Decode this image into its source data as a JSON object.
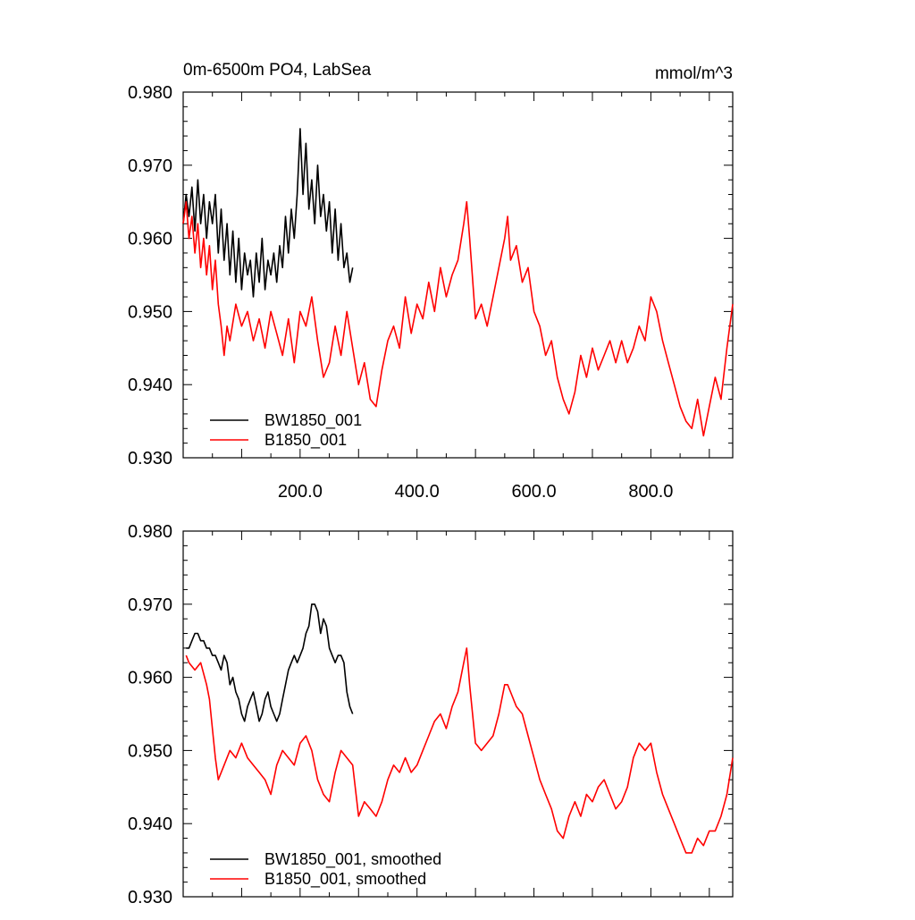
{
  "chart_data": [
    {
      "type": "line",
      "title": "0m-6500m PO4, LabSea",
      "units": "mmol/m^3",
      "xlim": [
        0,
        940
      ],
      "ylim": [
        0.93,
        0.98
      ],
      "x_ticks": [
        {
          "value": 200,
          "label": "200.0"
        },
        {
          "value": 400,
          "label": "400.0"
        },
        {
          "value": 600,
          "label": "600.0"
        },
        {
          "value": 800,
          "label": "800.0"
        }
      ],
      "y_ticks": [
        {
          "value": 0.93,
          "label": "0.930"
        },
        {
          "value": 0.94,
          "label": "0.940"
        },
        {
          "value": 0.95,
          "label": "0.950"
        },
        {
          "value": 0.96,
          "label": "0.960"
        },
        {
          "value": 0.97,
          "label": "0.970"
        },
        {
          "value": 0.98,
          "label": "0.980"
        }
      ],
      "legend_position": "bottom-left",
      "series": [
        {
          "name": "BW1850_001",
          "color": "#000000",
          "x": [
            0,
            5,
            10,
            15,
            20,
            25,
            30,
            35,
            40,
            45,
            50,
            55,
            60,
            65,
            70,
            75,
            80,
            85,
            90,
            95,
            100,
            105,
            110,
            115,
            120,
            125,
            130,
            135,
            140,
            145,
            150,
            155,
            160,
            165,
            170,
            175,
            180,
            185,
            190,
            195,
            200,
            205,
            210,
            215,
            220,
            225,
            230,
            235,
            240,
            245,
            250,
            255,
            260,
            265,
            270,
            275,
            280,
            285,
            290
          ],
          "y": [
            0.962,
            0.966,
            0.963,
            0.967,
            0.961,
            0.968,
            0.962,
            0.966,
            0.96,
            0.965,
            0.962,
            0.966,
            0.958,
            0.964,
            0.957,
            0.962,
            0.955,
            0.961,
            0.954,
            0.96,
            0.953,
            0.958,
            0.955,
            0.957,
            0.952,
            0.958,
            0.954,
            0.96,
            0.953,
            0.957,
            0.955,
            0.958,
            0.954,
            0.959,
            0.956,
            0.963,
            0.958,
            0.964,
            0.96,
            0.966,
            0.975,
            0.966,
            0.973,
            0.964,
            0.968,
            0.962,
            0.97,
            0.963,
            0.966,
            0.961,
            0.965,
            0.958,
            0.964,
            0.957,
            0.962,
            0.956,
            0.958,
            0.954,
            0.956
          ]
        },
        {
          "name": "B1850_001",
          "color": "#ff0000",
          "x": [
            0,
            5,
            10,
            15,
            20,
            25,
            30,
            35,
            40,
            45,
            50,
            55,
            60,
            65,
            70,
            75,
            80,
            90,
            100,
            110,
            120,
            130,
            140,
            150,
            160,
            170,
            180,
            190,
            200,
            210,
            220,
            230,
            240,
            250,
            260,
            270,
            280,
            290,
            300,
            310,
            320,
            330,
            340,
            350,
            360,
            370,
            380,
            390,
            400,
            410,
            420,
            430,
            440,
            450,
            460,
            470,
            480,
            485,
            490,
            500,
            510,
            520,
            530,
            540,
            550,
            555,
            560,
            570,
            580,
            590,
            600,
            610,
            620,
            630,
            640,
            650,
            660,
            670,
            680,
            690,
            700,
            710,
            720,
            730,
            740,
            750,
            760,
            770,
            780,
            790,
            800,
            810,
            820,
            830,
            840,
            850,
            860,
            870,
            880,
            890,
            900,
            910,
            920,
            930,
            940
          ],
          "y": [
            0.962,
            0.965,
            0.96,
            0.963,
            0.958,
            0.962,
            0.956,
            0.96,
            0.955,
            0.959,
            0.953,
            0.957,
            0.951,
            0.948,
            0.944,
            0.948,
            0.946,
            0.951,
            0.948,
            0.95,
            0.946,
            0.949,
            0.945,
            0.95,
            0.947,
            0.944,
            0.949,
            0.943,
            0.95,
            0.948,
            0.952,
            0.946,
            0.941,
            0.943,
            0.948,
            0.944,
            0.95,
            0.945,
            0.94,
            0.943,
            0.938,
            0.937,
            0.942,
            0.946,
            0.948,
            0.945,
            0.952,
            0.947,
            0.951,
            0.949,
            0.954,
            0.95,
            0.956,
            0.952,
            0.955,
            0.957,
            0.962,
            0.965,
            0.96,
            0.949,
            0.951,
            0.948,
            0.952,
            0.956,
            0.96,
            0.963,
            0.957,
            0.959,
            0.954,
            0.956,
            0.95,
            0.948,
            0.944,
            0.946,
            0.941,
            0.938,
            0.936,
            0.939,
            0.944,
            0.941,
            0.945,
            0.942,
            0.944,
            0.946,
            0.943,
            0.946,
            0.943,
            0.945,
            0.948,
            0.946,
            0.952,
            0.95,
            0.946,
            0.943,
            0.94,
            0.937,
            0.935,
            0.934,
            0.938,
            0.933,
            0.937,
            0.941,
            0.938,
            0.945,
            0.951
          ]
        }
      ]
    },
    {
      "type": "line",
      "xlim": [
        0,
        940
      ],
      "ylim": [
        0.93,
        0.98
      ],
      "y_ticks": [
        {
          "value": 0.93,
          "label": "0.930"
        },
        {
          "value": 0.94,
          "label": "0.940"
        },
        {
          "value": 0.95,
          "label": "0.950"
        },
        {
          "value": 0.96,
          "label": "0.960"
        },
        {
          "value": 0.97,
          "label": "0.970"
        },
        {
          "value": 0.98,
          "label": "0.980"
        }
      ],
      "legend_position": "bottom-left",
      "series": [
        {
          "name": "BW1850_001, smoothed",
          "color": "#000000",
          "x": [
            5,
            10,
            15,
            20,
            25,
            30,
            35,
            40,
            45,
            50,
            55,
            60,
            65,
            70,
            75,
            80,
            85,
            90,
            95,
            100,
            105,
            110,
            115,
            120,
            125,
            130,
            135,
            140,
            145,
            150,
            155,
            160,
            165,
            170,
            175,
            180,
            185,
            190,
            195,
            200,
            205,
            210,
            215,
            220,
            225,
            230,
            235,
            240,
            245,
            250,
            255,
            260,
            265,
            270,
            275,
            280,
            285,
            290
          ],
          "y": [
            0.964,
            0.964,
            0.965,
            0.966,
            0.966,
            0.965,
            0.965,
            0.964,
            0.964,
            0.963,
            0.963,
            0.962,
            0.961,
            0.963,
            0.962,
            0.959,
            0.96,
            0.958,
            0.957,
            0.955,
            0.954,
            0.956,
            0.957,
            0.958,
            0.956,
            0.954,
            0.955,
            0.957,
            0.958,
            0.956,
            0.955,
            0.954,
            0.955,
            0.957,
            0.959,
            0.961,
            0.962,
            0.963,
            0.962,
            0.963,
            0.964,
            0.966,
            0.967,
            0.97,
            0.97,
            0.969,
            0.966,
            0.968,
            0.967,
            0.964,
            0.963,
            0.962,
            0.963,
            0.963,
            0.962,
            0.958,
            0.956,
            0.955
          ]
        },
        {
          "name": "B1850_001, smoothed",
          "color": "#ff0000",
          "x": [
            5,
            10,
            20,
            30,
            40,
            45,
            50,
            55,
            60,
            70,
            80,
            90,
            100,
            110,
            120,
            130,
            140,
            150,
            160,
            170,
            180,
            190,
            200,
            210,
            220,
            230,
            240,
            250,
            260,
            270,
            280,
            290,
            300,
            310,
            320,
            330,
            340,
            350,
            360,
            370,
            380,
            390,
            400,
            410,
            420,
            430,
            440,
            450,
            460,
            470,
            480,
            485,
            490,
            500,
            510,
            520,
            530,
            540,
            550,
            555,
            560,
            570,
            580,
            590,
            600,
            610,
            620,
            630,
            640,
            650,
            660,
            670,
            680,
            690,
            700,
            710,
            720,
            730,
            740,
            750,
            760,
            770,
            780,
            790,
            800,
            810,
            820,
            830,
            840,
            850,
            860,
            870,
            880,
            890,
            900,
            910,
            920,
            930,
            940
          ],
          "y": [
            0.963,
            0.962,
            0.961,
            0.962,
            0.959,
            0.957,
            0.953,
            0.949,
            0.946,
            0.948,
            0.95,
            0.949,
            0.951,
            0.949,
            0.948,
            0.947,
            0.946,
            0.944,
            0.948,
            0.95,
            0.949,
            0.948,
            0.951,
            0.952,
            0.95,
            0.946,
            0.944,
            0.943,
            0.947,
            0.95,
            0.949,
            0.948,
            0.941,
            0.943,
            0.942,
            0.941,
            0.943,
            0.946,
            0.948,
            0.947,
            0.949,
            0.947,
            0.948,
            0.95,
            0.952,
            0.954,
            0.955,
            0.953,
            0.956,
            0.958,
            0.962,
            0.964,
            0.959,
            0.951,
            0.95,
            0.951,
            0.952,
            0.955,
            0.959,
            0.959,
            0.958,
            0.956,
            0.955,
            0.952,
            0.949,
            0.946,
            0.944,
            0.942,
            0.939,
            0.938,
            0.941,
            0.943,
            0.941,
            0.944,
            0.943,
            0.945,
            0.946,
            0.944,
            0.942,
            0.943,
            0.945,
            0.949,
            0.951,
            0.95,
            0.951,
            0.947,
            0.944,
            0.942,
            0.94,
            0.938,
            0.936,
            0.936,
            0.938,
            0.937,
            0.939,
            0.939,
            0.941,
            0.944,
            0.949
          ]
        }
      ]
    }
  ]
}
